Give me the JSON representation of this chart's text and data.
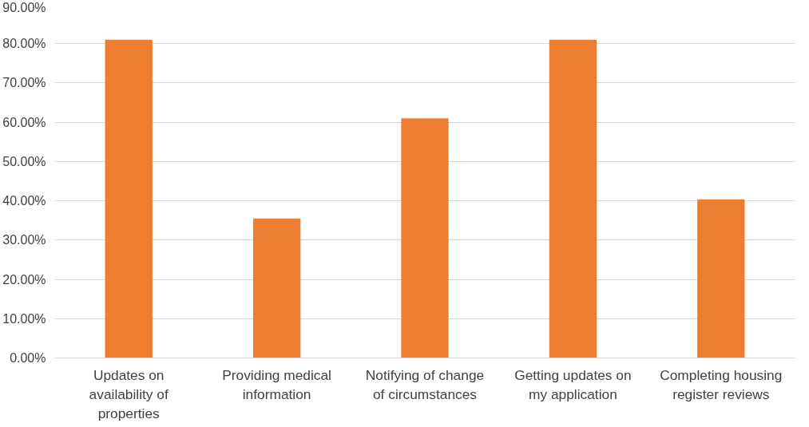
{
  "chart_data": {
    "type": "bar",
    "categories": [
      "Updates on availability of properties",
      "Providing medical information",
      "Notifying of change of circumstances",
      "Getting updates on my application",
      "Completing housing register reviews"
    ],
    "values": [
      81.0,
      35.5,
      61.0,
      81.0,
      40.4
    ],
    "color": "#ed7d31",
    "ylim": [
      0,
      90
    ],
    "yticks": [
      {
        "value": 0,
        "label": "0.00%"
      },
      {
        "value": 10,
        "label": "10.00%"
      },
      {
        "value": 20,
        "label": "20.00%"
      },
      {
        "value": 30,
        "label": "30.00%"
      },
      {
        "value": 40,
        "label": "40.00%"
      },
      {
        "value": 50,
        "label": "50.00%"
      },
      {
        "value": 60,
        "label": "60.00%"
      },
      {
        "value": 70,
        "label": "70.00%"
      },
      {
        "value": 80,
        "label": "80.00%"
      },
      {
        "value": 90,
        "label": "90.00%"
      }
    ],
    "grid": "y"
  }
}
